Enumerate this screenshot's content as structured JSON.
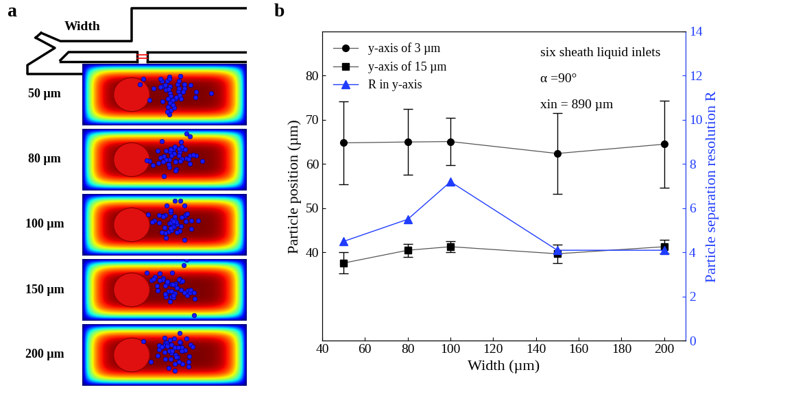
{
  "chart_data": {
    "type": "line",
    "xlabel": "Width (µm)",
    "ylabel": "Particle position (µm)",
    "y2label": "Particle separation resolution R",
    "annotations": [
      "six sheath liquid inlets",
      "α =90°",
      "xin = 890 µm"
    ],
    "x": [
      50,
      80,
      100,
      150,
      200
    ],
    "xlim": [
      40,
      210
    ],
    "xticks": [
      40,
      60,
      80,
      100,
      120,
      140,
      160,
      180,
      200
    ],
    "ylim": [
      20,
      90
    ],
    "yticks": [
      40,
      50,
      60,
      70,
      80
    ],
    "y2lim": [
      0,
      14
    ],
    "y2ticks": [
      0,
      2,
      4,
      6,
      8,
      10,
      12,
      14
    ],
    "grid": false,
    "legend": "upper left",
    "series": [
      {
        "name": "y-axis of 3 µm",
        "color": "#000000",
        "marker": "circle",
        "line_style": "solid",
        "values": [
          64.8,
          65.0,
          65.1,
          62.4,
          64.5
        ],
        "errors": [
          9.4,
          7.4,
          5.3,
          9.1,
          9.8
        ]
      },
      {
        "name": "y-axis of 15 µm",
        "color": "#000000",
        "marker": "square",
        "line_style": "solid",
        "values": [
          37.6,
          40.5,
          41.3,
          39.7,
          41.3
        ],
        "errors": [
          2.4,
          1.5,
          1.2,
          2.1,
          1.5
        ]
      },
      {
        "name": "R in y-axis",
        "color": "#1f3cff",
        "marker": "triangle",
        "line_style": "solid",
        "axis": "y2",
        "values": [
          4.5,
          5.5,
          7.2,
          4.1,
          4.1
        ]
      }
    ]
  },
  "diagram": {
    "panel_labels": [
      "a",
      "b"
    ],
    "title": "Width",
    "row_labels": [
      "50 µm",
      "80 µm",
      "100 µm",
      "150 µm",
      "200 µm"
    ]
  }
}
